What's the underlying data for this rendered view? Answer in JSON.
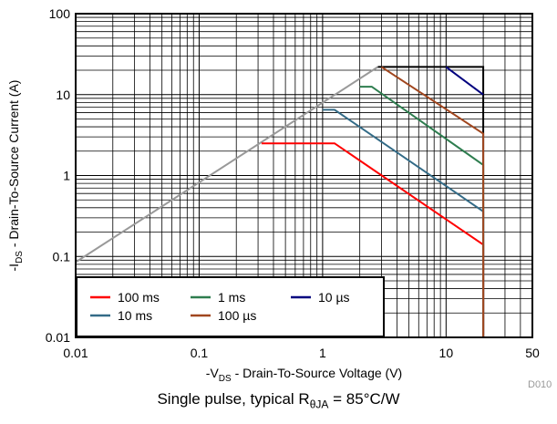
{
  "chart_data": {
    "type": "line",
    "x_scale": "log",
    "y_scale": "log",
    "xlim": [
      0.01,
      50
    ],
    "ylim": [
      0.01,
      100
    ],
    "x_ticks": [
      {
        "value": 0.01,
        "label": "0.01"
      },
      {
        "value": 0.1,
        "label": "0.1"
      },
      {
        "value": 1,
        "label": "1"
      },
      {
        "value": 10,
        "label": "10"
      },
      {
        "value": 50,
        "label": "50"
      }
    ],
    "y_ticks": [
      {
        "value": 0.01,
        "label": "0.01"
      },
      {
        "value": 0.1,
        "label": "0.1"
      },
      {
        "value": 1,
        "label": "1"
      },
      {
        "value": 10,
        "label": "10"
      },
      {
        "value": 100,
        "label": "100"
      }
    ],
    "xlabel": {
      "prefix": "-V",
      "sub": "DS",
      "suffix": " - Drain-To-Source Voltage (V)"
    },
    "ylabel": {
      "prefix": "-I",
      "sub": "DS",
      "suffix": " - Drain-To-Source Current (A)"
    },
    "grid": true,
    "legend_position": "bottom-left",
    "series": [
      {
        "name": "100 ms",
        "color": "#ff0000",
        "x": [
          0.32,
          1.25,
          20,
          20
        ],
        "y": [
          2.5,
          2.5,
          0.14,
          0
        ]
      },
      {
        "name": "1 ms",
        "color": "#2e7d4f",
        "x": [
          2.0,
          2.5,
          20,
          20
        ],
        "y": [
          12.5,
          12.5,
          1.35,
          0
        ]
      },
      {
        "name": "10 µs",
        "color": "#00007f",
        "x": [
          10,
          20
        ],
        "y": [
          22,
          10
        ]
      },
      {
        "name": "10 ms",
        "color": "#336b87",
        "x": [
          1.0,
          1.25,
          20,
          20
        ],
        "y": [
          6.5,
          6.5,
          0.36,
          0
        ]
      },
      {
        "name": "100 µs",
        "color": "#a0461e",
        "x": [
          3.0,
          20,
          20
        ],
        "y": [
          22,
          3.3,
          0
        ]
      }
    ],
    "limit_lines": [
      {
        "color": "#999999",
        "x": [
          0.01,
          2.8
        ],
        "y": [
          0.085,
          22
        ]
      },
      {
        "color": "#000000",
        "x": [
          2.8,
          20,
          20
        ],
        "y": [
          22,
          22,
          0.01
        ]
      }
    ],
    "figure_id": "D010"
  },
  "caption": {
    "prefix": "Single pulse, typical R",
    "sub": "θJA",
    "suffix": " = 85°C/W"
  }
}
